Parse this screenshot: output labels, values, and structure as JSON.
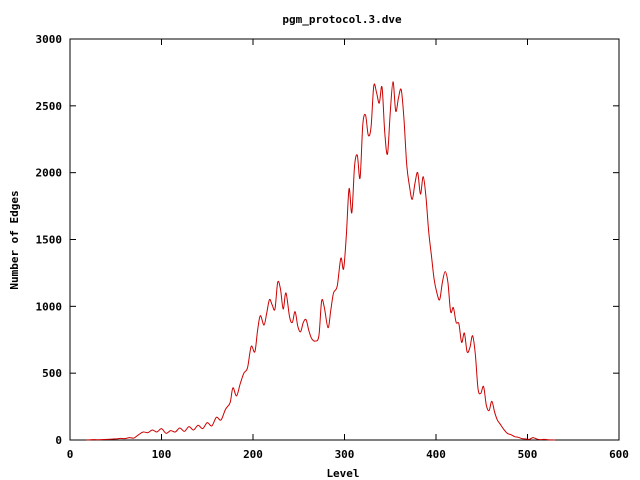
{
  "chart_data": {
    "type": "line",
    "title": "pgm_protocol.3.dve",
    "xlabel": "Level",
    "ylabel": "Number of Edges",
    "xlim": [
      0,
      600
    ],
    "ylim": [
      0,
      3000
    ],
    "xticks": [
      0,
      100,
      200,
      300,
      400,
      500,
      600
    ],
    "yticks": [
      0,
      500,
      1000,
      1500,
      2000,
      2500,
      3000
    ],
    "grid": false,
    "legend": "none",
    "series": [
      {
        "color": "#cc0000",
        "points": [
          [
            18,
            0
          ],
          [
            25,
            3
          ],
          [
            30,
            2
          ],
          [
            40,
            5
          ],
          [
            50,
            8
          ],
          [
            55,
            12
          ],
          [
            60,
            10
          ],
          [
            65,
            18
          ],
          [
            70,
            15
          ],
          [
            75,
            40
          ],
          [
            80,
            60
          ],
          [
            85,
            55
          ],
          [
            90,
            75
          ],
          [
            95,
            60
          ],
          [
            100,
            85
          ],
          [
            105,
            50
          ],
          [
            110,
            70
          ],
          [
            115,
            60
          ],
          [
            120,
            90
          ],
          [
            125,
            65
          ],
          [
            130,
            100
          ],
          [
            135,
            75
          ],
          [
            140,
            110
          ],
          [
            145,
            85
          ],
          [
            150,
            130
          ],
          [
            155,
            105
          ],
          [
            160,
            170
          ],
          [
            165,
            150
          ],
          [
            170,
            230
          ],
          [
            175,
            280
          ],
          [
            178,
            390
          ],
          [
            182,
            330
          ],
          [
            186,
            420
          ],
          [
            190,
            500
          ],
          [
            194,
            540
          ],
          [
            198,
            700
          ],
          [
            202,
            660
          ],
          [
            205,
            820
          ],
          [
            208,
            930
          ],
          [
            212,
            860
          ],
          [
            215,
            950
          ],
          [
            218,
            1050
          ],
          [
            221,
            1010
          ],
          [
            224,
            980
          ],
          [
            227,
            1180
          ],
          [
            230,
            1130
          ],
          [
            233,
            980
          ],
          [
            236,
            1100
          ],
          [
            240,
            920
          ],
          [
            243,
            880
          ],
          [
            246,
            960
          ],
          [
            249,
            850
          ],
          [
            252,
            810
          ],
          [
            255,
            880
          ],
          [
            258,
            900
          ],
          [
            261,
            820
          ],
          [
            264,
            760
          ],
          [
            268,
            740
          ],
          [
            272,
            780
          ],
          [
            275,
            1040
          ],
          [
            278,
            990
          ],
          [
            282,
            840
          ],
          [
            285,
            970
          ],
          [
            288,
            1100
          ],
          [
            292,
            1150
          ],
          [
            296,
            1360
          ],
          [
            299,
            1280
          ],
          [
            302,
            1530
          ],
          [
            305,
            1880
          ],
          [
            308,
            1700
          ],
          [
            311,
            2050
          ],
          [
            314,
            2130
          ],
          [
            317,
            1960
          ],
          [
            320,
            2360
          ],
          [
            323,
            2430
          ],
          [
            326,
            2280
          ],
          [
            329,
            2340
          ],
          [
            332,
            2650
          ],
          [
            335,
            2600
          ],
          [
            338,
            2520
          ],
          [
            341,
            2640
          ],
          [
            344,
            2300
          ],
          [
            347,
            2140
          ],
          [
            350,
            2450
          ],
          [
            353,
            2680
          ],
          [
            356,
            2460
          ],
          [
            359,
            2560
          ],
          [
            362,
            2620
          ],
          [
            365,
            2400
          ],
          [
            368,
            2060
          ],
          [
            371,
            1900
          ],
          [
            374,
            1800
          ],
          [
            377,
            1920
          ],
          [
            380,
            2000
          ],
          [
            383,
            1840
          ],
          [
            386,
            1970
          ],
          [
            389,
            1820
          ],
          [
            392,
            1560
          ],
          [
            395,
            1380
          ],
          [
            398,
            1200
          ],
          [
            401,
            1100
          ],
          [
            404,
            1050
          ],
          [
            407,
            1180
          ],
          [
            410,
            1260
          ],
          [
            413,
            1180
          ],
          [
            416,
            960
          ],
          [
            419,
            990
          ],
          [
            422,
            880
          ],
          [
            425,
            870
          ],
          [
            428,
            730
          ],
          [
            431,
            800
          ],
          [
            434,
            660
          ],
          [
            437,
            690
          ],
          [
            440,
            780
          ],
          [
            443,
            640
          ],
          [
            446,
            380
          ],
          [
            449,
            350
          ],
          [
            452,
            400
          ],
          [
            455,
            260
          ],
          [
            458,
            220
          ],
          [
            461,
            290
          ],
          [
            464,
            210
          ],
          [
            467,
            150
          ],
          [
            470,
            120
          ],
          [
            474,
            80
          ],
          [
            478,
            50
          ],
          [
            482,
            40
          ],
          [
            486,
            25
          ],
          [
            490,
            20
          ],
          [
            494,
            10
          ],
          [
            498,
            8
          ],
          [
            502,
            5
          ],
          [
            506,
            18
          ],
          [
            510,
            8
          ],
          [
            514,
            3
          ],
          [
            518,
            5
          ],
          [
            522,
            2
          ],
          [
            526,
            1
          ],
          [
            530,
            0
          ]
        ]
      }
    ]
  }
}
